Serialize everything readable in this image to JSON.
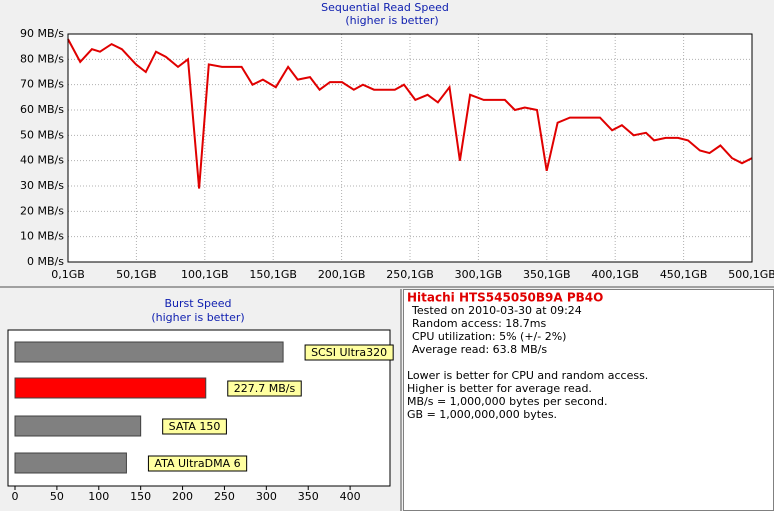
{
  "chart_data": [
    {
      "type": "line",
      "title": "Sequential Read Speed",
      "subtitle": "(higher is better)",
      "x": [
        0.1,
        9,
        17.6,
        23.5,
        32,
        39.5,
        49.8,
        57,
        64.4,
        71.7,
        80.5,
        87.8,
        95.9,
        103,
        112.7,
        120,
        127,
        135,
        142.6,
        152,
        161,
        168,
        177,
        184,
        191.6,
        200.4,
        209,
        215.7,
        223.8,
        239,
        245.7,
        254,
        263,
        270.5,
        279,
        286.6,
        294,
        304,
        319.5,
        326.8,
        334,
        342.9,
        350,
        358,
        367,
        389,
        397.8,
        405,
        413.6,
        422.6,
        428.5,
        437,
        446,
        453.3,
        462,
        469,
        477,
        485.5,
        492.8,
        500.1
      ],
      "values": [
        88,
        79,
        84,
        83,
        86,
        84,
        78,
        75,
        83,
        81,
        77,
        80,
        29,
        78,
        77,
        77,
        77,
        70,
        72,
        69,
        77,
        72,
        73,
        68,
        71,
        71,
        68,
        70,
        68,
        68,
        70,
        64,
        66,
        63,
        69,
        40,
        66,
        64,
        64,
        60,
        61,
        60,
        36,
        55,
        57,
        57,
        52,
        54,
        50,
        51,
        48,
        49,
        49,
        48,
        44,
        43,
        46,
        41,
        39,
        41
      ],
      "color": "#e00000",
      "xlim": [
        0.1,
        500.1
      ],
      "xticks": [
        {
          "value": 0.1,
          "label": "0,1GB"
        },
        {
          "value": 50.1,
          "label": "50,1GB"
        },
        {
          "value": 100.1,
          "label": "100,1GB"
        },
        {
          "value": 150.1,
          "label": "150,1GB"
        },
        {
          "value": 200.1,
          "label": "200,1GB"
        },
        {
          "value": 250.1,
          "label": "250,1GB"
        },
        {
          "value": 300.1,
          "label": "300,1GB"
        },
        {
          "value": 350.1,
          "label": "350,1GB"
        },
        {
          "value": 400.1,
          "label": "400,1GB"
        },
        {
          "value": 450.1,
          "label": "450,1GB"
        },
        {
          "value": 500.1,
          "label": "500,1GB"
        }
      ],
      "ylim": [
        0,
        90
      ],
      "yticks": [
        {
          "value": 0,
          "label": "0 MB/s"
        },
        {
          "value": 10,
          "label": "10 MB/s"
        },
        {
          "value": 20,
          "label": "20 MB/s"
        },
        {
          "value": 30,
          "label": "30 MB/s"
        },
        {
          "value": 40,
          "label": "40 MB/s"
        },
        {
          "value": 50,
          "label": "50 MB/s"
        },
        {
          "value": 60,
          "label": "60 MB/s"
        },
        {
          "value": 70,
          "label": "70 MB/s"
        },
        {
          "value": 80,
          "label": "80 MB/s"
        },
        {
          "value": 90,
          "label": "90 MB/s"
        }
      ],
      "grid": true
    },
    {
      "type": "hbar",
      "title": "Burst Speed",
      "subtitle": "(higher is better)",
      "categories": [
        "SCSI Ultra320",
        null,
        "SATA 150",
        "ATA UltraDMA 6"
      ],
      "values": [
        320,
        227.7,
        150,
        133
      ],
      "value_labels": [
        null,
        "227.7 MB/s",
        null,
        null
      ],
      "colors": [
        "#808080",
        "#ff0000",
        "#808080",
        "#808080"
      ],
      "xlim": [
        0,
        450
      ],
      "xticks": [
        0,
        50,
        100,
        150,
        200,
        250,
        300,
        350,
        400
      ],
      "grid": false
    }
  ],
  "info": {
    "title": "Hitachi HTS545050B9A PB4O",
    "lines": [
      "Tested on 2010-03-30 at 09:24",
      "Random access: 18.7ms",
      "CPU utilization: 5% (+/- 2%)",
      "Average read: 63.8 MB/s"
    ],
    "notes": [
      "Lower is better for CPU and random access.",
      "Higher is better for average read.",
      "MB/s = 1,000,000 bytes per second.",
      "GB = 1,000,000,000 bytes."
    ]
  }
}
